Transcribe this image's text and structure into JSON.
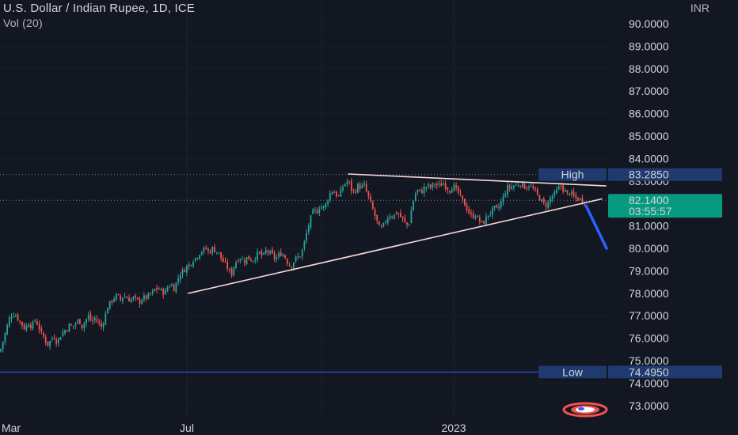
{
  "header": {
    "title": "U.S. Dollar / Indian Rupee, 1D, ICE",
    "volume_label": "Vol (20)",
    "currency": "INR"
  },
  "colors": {
    "background": "#131722",
    "up": "#26a69a",
    "down": "#ef5350",
    "trendline": "#f8d7d7",
    "projection": "#2962ff",
    "low_line": "#2962ff",
    "current_price_bg": "#089981",
    "high_low_tag_bg": "#1e3a6e"
  },
  "chart_data": {
    "type": "candlestick",
    "symbol": "USDINR",
    "interval": "1D",
    "ylim": [
      72.5,
      90.5
    ],
    "y_ticks": [
      "90.0000",
      "89.0000",
      "88.0000",
      "87.0000",
      "86.0000",
      "85.0000",
      "84.0000",
      "83.0000",
      "82.0000",
      "81.0000",
      "80.0000",
      "79.0000",
      "78.0000",
      "77.0000",
      "76.0000",
      "75.0000",
      "74.0000",
      "73.0000"
    ],
    "x_ticks": [
      "Mar",
      "Jul",
      "2023"
    ],
    "close_path": [
      [
        0,
        75.4
      ],
      [
        4,
        75.9
      ],
      [
        8,
        76.4
      ],
      [
        12,
        76.9
      ],
      [
        16,
        77.1
      ],
      [
        20,
        77.0
      ],
      [
        24,
        76.8
      ],
      [
        28,
        76.6
      ],
      [
        32,
        76.4
      ],
      [
        36,
        76.7
      ],
      [
        40,
        76.5
      ],
      [
        44,
        76.8
      ],
      [
        48,
        76.6
      ],
      [
        52,
        76.2
      ],
      [
        56,
        76.0
      ],
      [
        60,
        75.7
      ],
      [
        64,
        75.9
      ],
      [
        68,
        76.1
      ],
      [
        72,
        75.8
      ],
      [
        76,
        76.1
      ],
      [
        80,
        76.3
      ],
      [
        84,
        76.4
      ],
      [
        88,
        76.6
      ],
      [
        92,
        76.5
      ],
      [
        96,
        76.7
      ],
      [
        100,
        76.8
      ],
      [
        104,
        76.5
      ],
      [
        108,
        76.8
      ],
      [
        112,
        77.0
      ],
      [
        116,
        76.7
      ],
      [
        120,
        76.9
      ],
      [
        124,
        76.7
      ],
      [
        128,
        76.5
      ],
      [
        132,
        76.9
      ],
      [
        136,
        77.4
      ],
      [
        140,
        77.6
      ],
      [
        144,
        77.8
      ],
      [
        148,
        77.9
      ],
      [
        152,
        77.7
      ],
      [
        156,
        77.9
      ],
      [
        160,
        77.8
      ],
      [
        164,
        77.7
      ],
      [
        168,
        77.8
      ],
      [
        172,
        77.7
      ],
      [
        176,
        77.6
      ],
      [
        180,
        77.8
      ],
      [
        184,
        77.8
      ],
      [
        188,
        77.9
      ],
      [
        192,
        78.0
      ],
      [
        196,
        78.2
      ],
      [
        200,
        78.2
      ],
      [
        204,
        78.1
      ],
      [
        208,
        78.0
      ],
      [
        212,
        78.3
      ],
      [
        216,
        78.4
      ],
      [
        220,
        78.2
      ],
      [
        224,
        78.6
      ],
      [
        228,
        78.9
      ],
      [
        232,
        79.0
      ],
      [
        236,
        79.2
      ],
      [
        240,
        79.3
      ],
      [
        244,
        79.5
      ],
      [
        248,
        79.6
      ],
      [
        252,
        79.8
      ],
      [
        256,
        79.9
      ],
      [
        260,
        80.0
      ],
      [
        264,
        79.8
      ],
      [
        268,
        80.0
      ],
      [
        272,
        79.9
      ],
      [
        276,
        79.8
      ],
      [
        280,
        79.5
      ],
      [
        284,
        79.3
      ],
      [
        288,
        79.1
      ],
      [
        292,
        78.8
      ],
      [
        296,
        79.3
      ],
      [
        300,
        79.5
      ],
      [
        304,
        79.6
      ],
      [
        308,
        79.4
      ],
      [
        312,
        79.6
      ],
      [
        316,
        79.5
      ],
      [
        320,
        79.5
      ],
      [
        324,
        79.7
      ],
      [
        328,
        79.8
      ],
      [
        332,
        79.6
      ],
      [
        336,
        79.9
      ],
      [
        340,
        79.8
      ],
      [
        344,
        79.7
      ],
      [
        348,
        79.5
      ],
      [
        352,
        79.7
      ],
      [
        356,
        79.8
      ],
      [
        360,
        79.6
      ],
      [
        364,
        79.3
      ],
      [
        368,
        79.2
      ],
      [
        372,
        79.5
      ],
      [
        376,
        79.6
      ],
      [
        380,
        79.7
      ],
      [
        384,
        80.2
      ],
      [
        388,
        80.8
      ],
      [
        392,
        81.3
      ],
      [
        396,
        81.7
      ],
      [
        400,
        81.6
      ],
      [
        404,
        81.9
      ],
      [
        408,
        81.8
      ],
      [
        412,
        82.0
      ],
      [
        416,
        82.4
      ],
      [
        420,
        82.6
      ],
      [
        424,
        82.4
      ],
      [
        428,
        82.3
      ],
      [
        432,
        82.7
      ],
      [
        436,
        82.9
      ],
      [
        440,
        83.0
      ],
      [
        444,
        82.6
      ],
      [
        448,
        82.5
      ],
      [
        452,
        82.8
      ],
      [
        456,
        82.7
      ],
      [
        460,
        82.8
      ],
      [
        464,
        82.4
      ],
      [
        468,
        82.0
      ],
      [
        472,
        81.6
      ],
      [
        476,
        81.2
      ],
      [
        480,
        80.8
      ],
      [
        484,
        81.0
      ],
      [
        488,
        81.3
      ],
      [
        492,
        81.5
      ],
      [
        496,
        81.4
      ],
      [
        500,
        81.6
      ],
      [
        504,
        81.5
      ],
      [
        508,
        81.3
      ],
      [
        512,
        81.1
      ],
      [
        516,
        81.0
      ],
      [
        520,
        81.8
      ],
      [
        524,
        82.4
      ],
      [
        528,
        82.6
      ],
      [
        532,
        82.5
      ],
      [
        536,
        82.7
      ],
      [
        540,
        82.8
      ],
      [
        544,
        82.7
      ],
      [
        548,
        82.9
      ],
      [
        552,
        82.8
      ],
      [
        556,
        82.8
      ],
      [
        560,
        82.9
      ],
      [
        564,
        82.7
      ],
      [
        568,
        82.6
      ],
      [
        572,
        82.8
      ],
      [
        576,
        82.6
      ],
      [
        580,
        82.4
      ],
      [
        584,
        82.1
      ],
      [
        588,
        81.9
      ],
      [
        592,
        81.6
      ],
      [
        596,
        81.4
      ],
      [
        600,
        81.5
      ],
      [
        604,
        81.3
      ],
      [
        608,
        81.1
      ],
      [
        612,
        81.2
      ],
      [
        616,
        81.5
      ],
      [
        620,
        81.6
      ],
      [
        624,
        81.8
      ],
      [
        628,
        81.7
      ],
      [
        632,
        82.0
      ],
      [
        636,
        82.3
      ],
      [
        640,
        82.7
      ],
      [
        644,
        82.7
      ],
      [
        648,
        82.8
      ],
      [
        652,
        82.8
      ],
      [
        656,
        82.9
      ],
      [
        660,
        82.8
      ],
      [
        664,
        82.7
      ],
      [
        668,
        82.8
      ],
      [
        672,
        82.7
      ],
      [
        676,
        82.5
      ],
      [
        680,
        82.3
      ],
      [
        684,
        82.1
      ],
      [
        688,
        81.9
      ],
      [
        692,
        82.0
      ],
      [
        696,
        82.3
      ],
      [
        700,
        82.4
      ],
      [
        704,
        82.6
      ],
      [
        708,
        82.8
      ],
      [
        712,
        82.6
      ],
      [
        716,
        82.4
      ],
      [
        720,
        82.5
      ],
      [
        724,
        82.3
      ],
      [
        728,
        82.2
      ],
      [
        732,
        82.2
      ],
      [
        736,
        82.1
      ],
      [
        740,
        82.14
      ]
    ],
    "price_tags": [
      {
        "label": "High",
        "value": "83.2850",
        "price": 83.285
      },
      {
        "label": "",
        "value": "82.1400",
        "price": 82.14,
        "countdown": "03:55:57"
      },
      {
        "label": "Low",
        "value": "74.4950",
        "price": 74.495
      }
    ],
    "annotations": {
      "resistance_line": {
        "from": [
          440,
          83.31
        ],
        "to": [
          765,
          82.78
        ]
      },
      "support_line": {
        "from": [
          238,
          78.0
        ],
        "to": [
          760,
          82.2
        ]
      },
      "projection_arrow": {
        "from": [
          740,
          81.9
        ],
        "to": [
          766,
          80.0
        ]
      }
    }
  }
}
